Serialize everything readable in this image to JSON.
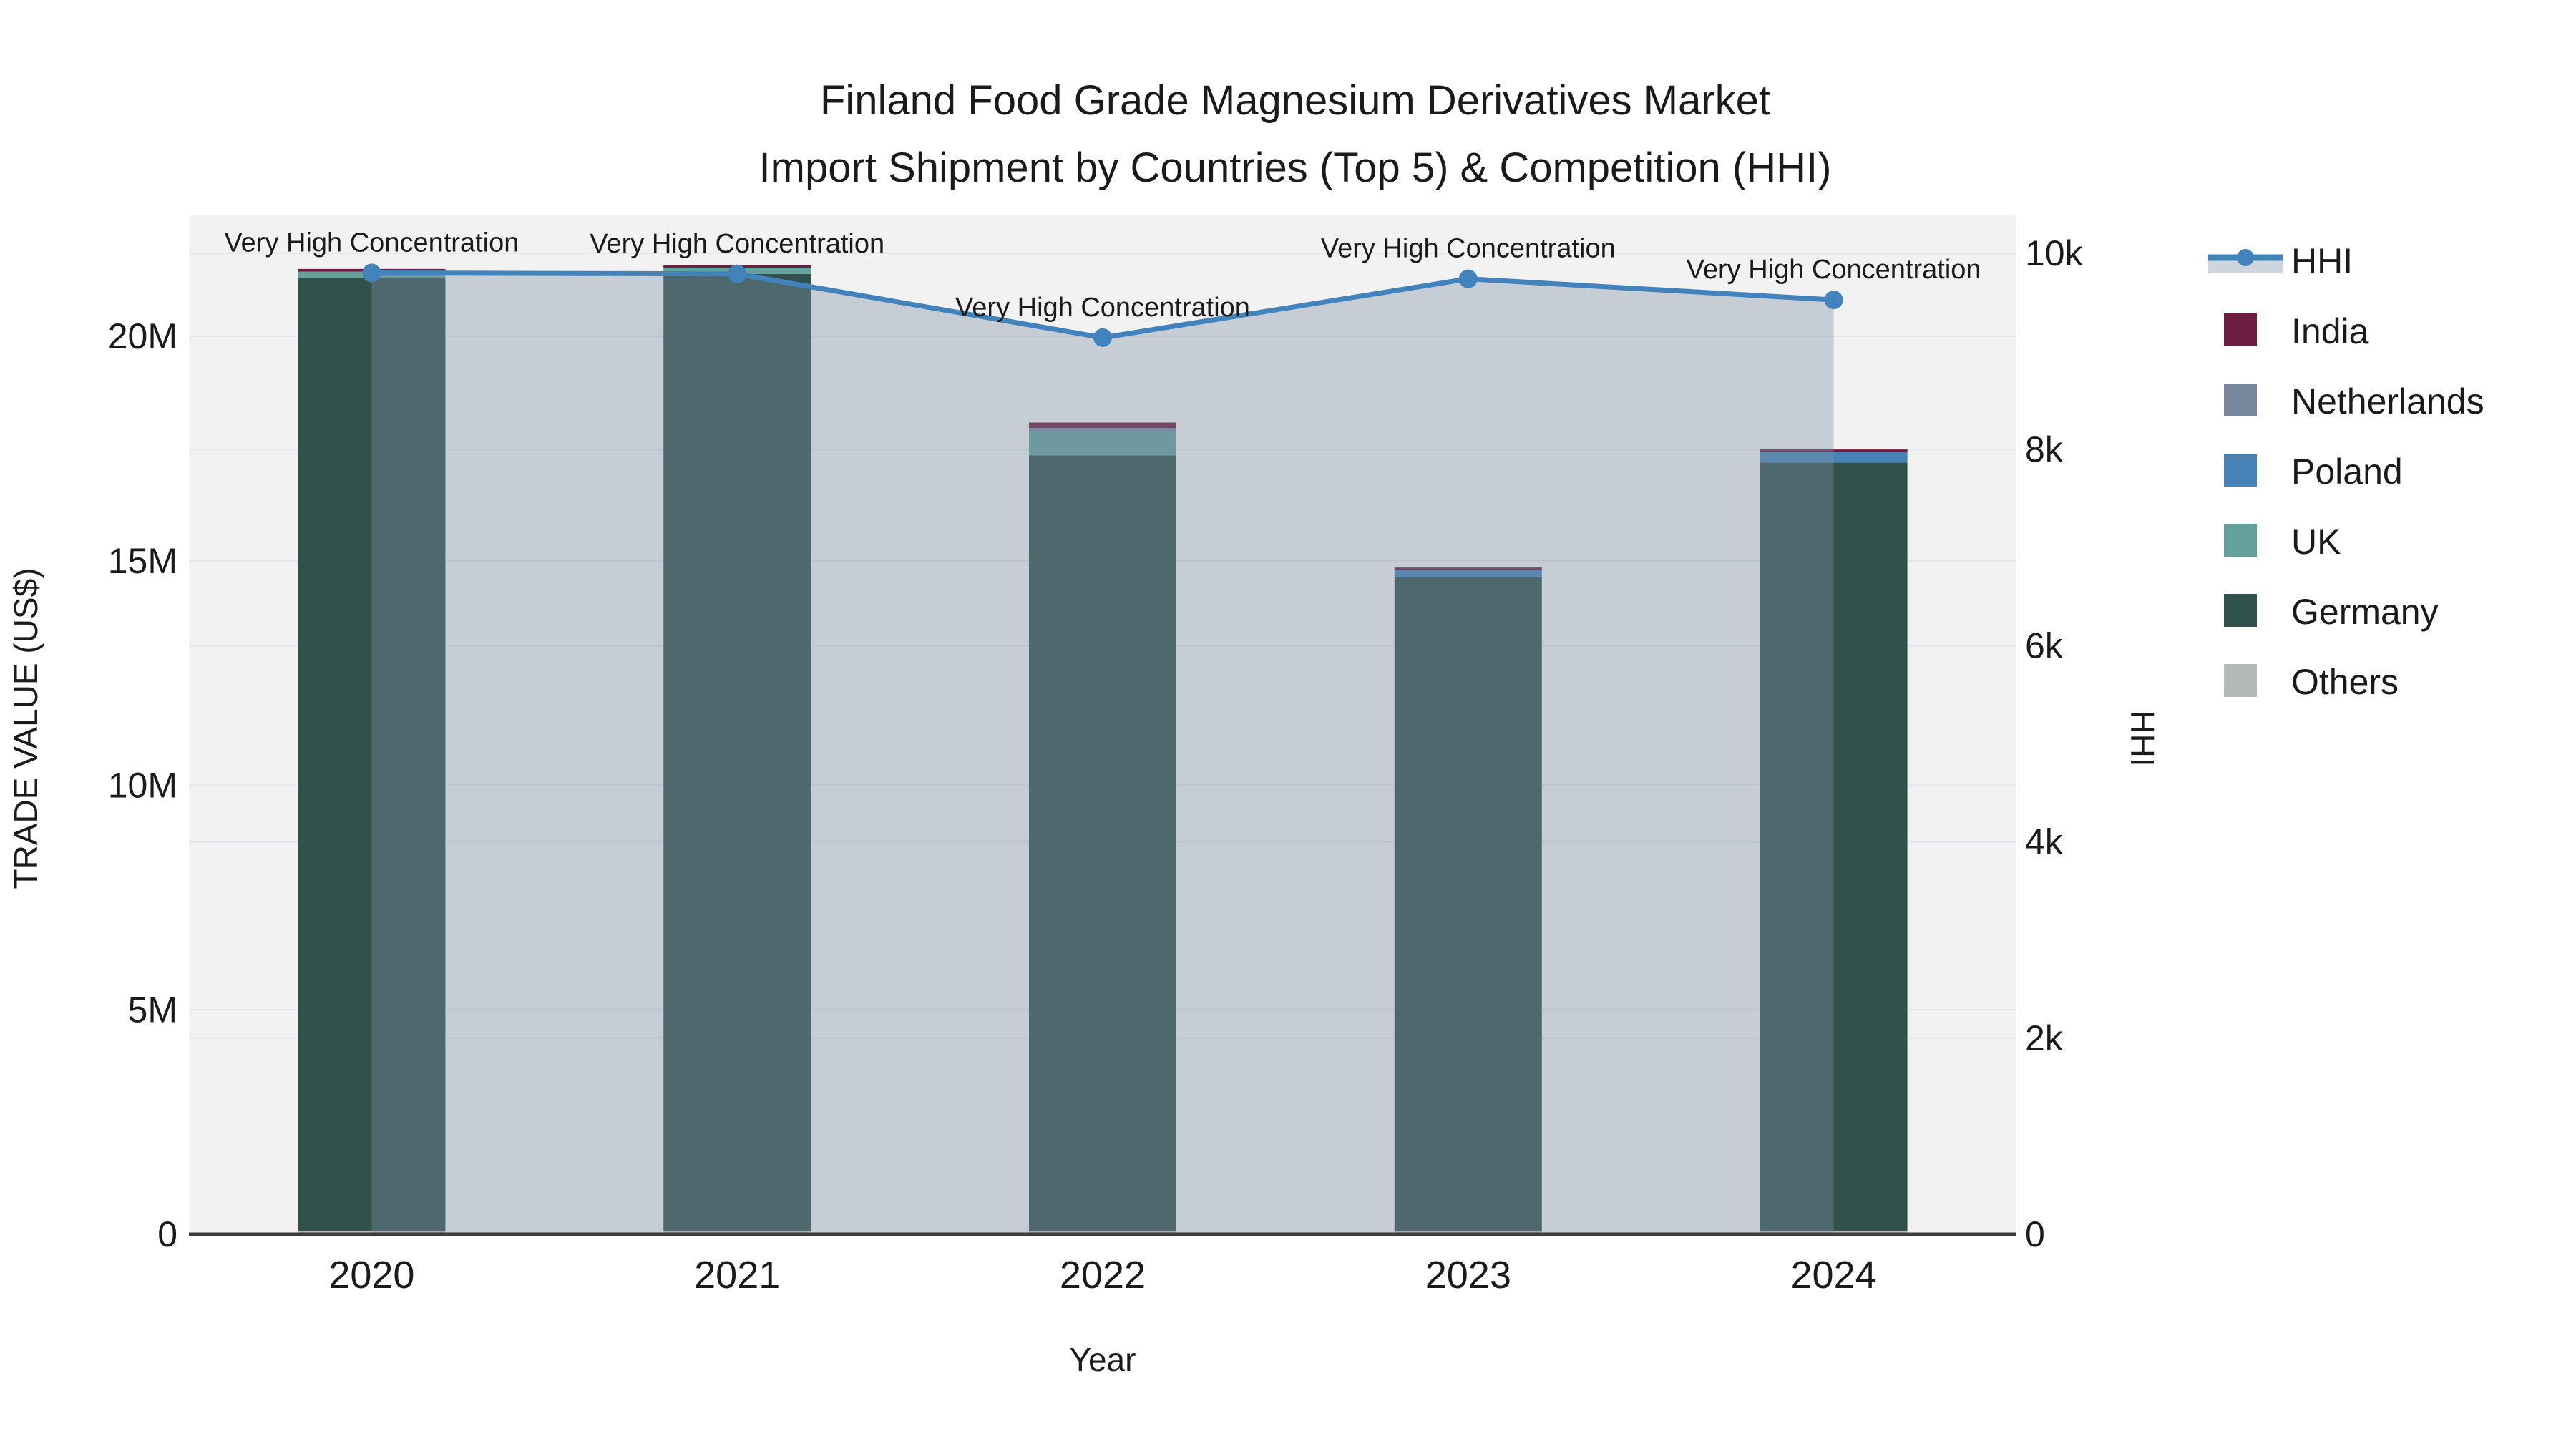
{
  "chart_data": {
    "type": "bar",
    "title": "Finland Food Grade Magnesium Derivatives Market",
    "subtitle": "Import Shipment by Countries (Top 5) & Competition (HHI)",
    "xlabel": "Year",
    "ylabel_left": "TRADE VALUE (US$)",
    "ylabel_right": "HHI",
    "categories": [
      "2020",
      "2021",
      "2022",
      "2023",
      "2024"
    ],
    "unit_left": "million US$",
    "series": [
      {
        "name": "India",
        "color": "#6b1e40",
        "values": [
          0.06,
          0.06,
          0.12,
          0.05,
          0.06
        ]
      },
      {
        "name": "Netherlands",
        "color": "#76879b",
        "values": [
          0.0,
          0.0,
          0.09,
          0.0,
          0.0
        ]
      },
      {
        "name": "Poland",
        "color": "#4781b5",
        "values": [
          0.0,
          0.0,
          0.0,
          0.17,
          0.23
        ]
      },
      {
        "name": "UK",
        "color": "#64a19c",
        "values": [
          0.14,
          0.14,
          0.52,
          0.0,
          0.0
        ]
      },
      {
        "name": "Germany",
        "color": "#31514d",
        "values": [
          21.22,
          21.31,
          17.27,
          14.55,
          17.11
        ]
      },
      {
        "name": "Others",
        "color": "#b4b8b9",
        "values": [
          0.08,
          0.08,
          0.08,
          0.08,
          0.08
        ]
      }
    ],
    "stack_order_bottom_to_top": [
      "Others",
      "Germany",
      "UK",
      "Poland",
      "Netherlands",
      "India"
    ],
    "bar_totals_musd": [
      21.5,
      21.59,
      18.08,
      14.85,
      17.48
    ],
    "line": {
      "name": "HHI",
      "color": "#4383bb",
      "area_fill": "rgba(125,145,165,0.38)",
      "values": [
        9800,
        9790,
        9140,
        9740,
        9525
      ]
    },
    "annotations": [
      "Very High Concentration",
      "Very High Concentration",
      "Very High Concentration",
      "Very High Concentration",
      "Very High Concentration"
    ],
    "yaxis_left": {
      "ticks": [
        {
          "label": "0",
          "value": 0
        },
        {
          "label": "5M",
          "value": 5
        },
        {
          "label": "10M",
          "value": 10
        },
        {
          "label": "15M",
          "value": 15
        },
        {
          "label": "20M",
          "value": 20
        }
      ],
      "range": [
        0,
        22.7
      ],
      "grid": true
    },
    "yaxis_right": {
      "ticks": [
        {
          "label": "0",
          "value": 0
        },
        {
          "label": "2k",
          "value": 2000
        },
        {
          "label": "4k",
          "value": 4000
        },
        {
          "label": "6k",
          "value": 6000
        },
        {
          "label": "8k",
          "value": 8000
        },
        {
          "label": "10k",
          "value": 10000
        }
      ],
      "range": [
        0,
        10390
      ],
      "grid": true
    },
    "legend_position": "right",
    "colors": {
      "plot_bg": "#f2f2f3",
      "grid": "#e3e5e8",
      "axis_line": "#3c3c3c",
      "text": "#1a1a1a"
    }
  }
}
